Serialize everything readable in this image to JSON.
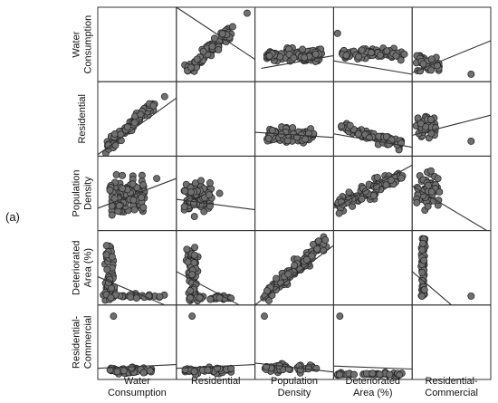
{
  "panel_label": "(a)",
  "chart_data": {
    "type": "scatter",
    "variables": [
      [
        "Water",
        "Consumption"
      ],
      [
        "Residential"
      ],
      [
        "Population",
        "Density"
      ],
      [
        "Deteriorated",
        "Area (%)"
      ],
      [
        "Residential-",
        "Commercial"
      ]
    ],
    "grid": true,
    "point_color": "#6f6f6f",
    "point_edge_color": "#222222",
    "line_color": "#333333",
    "fit_lines": [
      [
        null,
        [
          0.0,
          0.0,
          1.0,
          0.7
        ],
        [
          0.08,
          0.82,
          1.0,
          0.65
        ],
        [
          0.0,
          0.72,
          1.0,
          0.9
        ],
        [
          0.0,
          0.88,
          1.0,
          0.45
        ]
      ],
      [
        [
          0.0,
          0.98,
          1.0,
          0.22
        ],
        null,
        [
          0.0,
          0.68,
          1.0,
          0.75
        ],
        [
          0.0,
          0.7,
          1.0,
          0.88
        ],
        [
          0.0,
          0.72,
          1.0,
          0.45
        ]
      ],
      [
        [
          0.0,
          0.7,
          1.0,
          0.3
        ],
        [
          0.0,
          0.58,
          1.0,
          0.72
        ],
        null,
        [
          0.0,
          0.7,
          1.0,
          0.12
        ],
        [
          0.0,
          0.4,
          0.95,
          1.0
        ]
      ],
      [
        [
          0.0,
          0.62,
          0.85,
          1.0
        ],
        [
          0.0,
          0.55,
          0.8,
          1.0
        ],
        [
          0.0,
          1.0,
          1.0,
          0.2
        ],
        null,
        [
          0.0,
          0.55,
          0.5,
          1.0
        ]
      ],
      [
        [
          0.0,
          0.85,
          1.0,
          0.8
        ],
        [
          0.0,
          0.85,
          1.0,
          0.8
        ],
        [
          0.0,
          0.78,
          1.0,
          0.9
        ],
        [
          0.0,
          0.82,
          1.0,
          0.86
        ],
        null
      ]
    ]
  }
}
